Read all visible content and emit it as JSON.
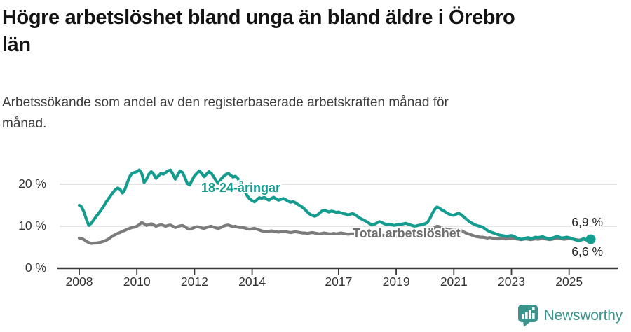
{
  "header": {
    "title": "Högre arbetslöshet bland unga än bland äldre i Örebro län",
    "title_lines": [
      "Högre arbetslöshet bland unga än bland äldre i Örebro",
      "län"
    ],
    "subtitle": "Arbetssökande som andel av den registerbaserade arbetskraften månad för månad.",
    "subtitle_lines": [
      "Arbetssökande som andel av den registerbaserade arbetskraften månad för",
      "månad."
    ]
  },
  "colors": {
    "youth_line": "#149c8f",
    "total_line": "#7b7b7b",
    "grid": "#dcdcdc",
    "axis": "#3a3a3a",
    "axis_text": "#333333",
    "end_label_text": "#222222",
    "logo": "#3a948c"
  },
  "logo": {
    "text": "Newsworthy",
    "icon": "newsworthy-bar-chart-bubble-icon"
  },
  "chart_data": {
    "type": "line",
    "title": "Högre arbetslöshet bland unga än bland äldre i Örebro län",
    "subtitle": "Arbetssökande som andel av den registerbaserade arbetskraften månad för månad.",
    "xlabel": "",
    "ylabel": "",
    "ylim": [
      0,
      25
    ],
    "grid": "horizontal",
    "legend": "inline-labels",
    "frequency": "monthly",
    "x_start": "2008-01",
    "x_end": "2025-10",
    "y_ticks": [
      {
        "value": 0,
        "label": "0 %"
      },
      {
        "value": 10,
        "label": "10 %"
      },
      {
        "value": 20,
        "label": "20 %"
      }
    ],
    "x_ticks": [
      {
        "year": 2008,
        "label": "2008"
      },
      {
        "year": 2010,
        "label": "2010"
      },
      {
        "year": 2012,
        "label": "2012"
      },
      {
        "year": 2014,
        "label": "2014"
      },
      {
        "year": 2017,
        "label": "2017"
      },
      {
        "year": 2019,
        "label": "2019"
      },
      {
        "year": 2021,
        "label": "2021"
      },
      {
        "year": 2023,
        "label": "2023"
      },
      {
        "year": 2025,
        "label": "2025"
      }
    ],
    "series": [
      {
        "name": "18-24-åringar",
        "end_label": "6,9 %",
        "end_value": 6.9,
        "values": [
          15.0,
          14.6,
          13.4,
          11.6,
          10.2,
          10.7,
          11.5,
          12.3,
          13.0,
          13.8,
          14.6,
          15.6,
          16.4,
          17.2,
          18.0,
          18.7,
          19.1,
          18.8,
          17.9,
          18.8,
          20.3,
          21.8,
          22.6,
          22.8,
          23.0,
          23.4,
          22.6,
          20.4,
          21.2,
          22.4,
          23.0,
          22.4,
          21.4,
          22.0,
          22.6,
          22.4,
          22.8,
          23.2,
          23.4,
          22.4,
          21.2,
          22.2,
          23.2,
          22.8,
          21.6,
          20.2,
          19.8,
          21.0,
          22.0,
          22.6,
          23.2,
          22.6,
          21.8,
          22.4,
          23.0,
          22.6,
          21.8,
          20.8,
          20.2,
          21.2,
          21.8,
          22.3,
          22.6,
          22.2,
          21.7,
          21.9,
          21.4,
          20.5,
          19.5,
          18.3,
          17.2,
          16.5,
          16.1,
          15.8,
          16.3,
          16.8,
          16.6,
          16.9,
          16.5,
          16.2,
          16.6,
          16.9,
          16.5,
          16.2,
          16.4,
          16.6,
          16.3,
          16.0,
          15.7,
          15.9,
          15.6,
          15.2,
          14.9,
          14.5,
          14.0,
          13.4,
          12.9,
          12.6,
          12.4,
          12.6,
          13.1,
          13.6,
          13.8,
          13.6,
          13.4,
          13.6,
          13.5,
          13.3,
          13.4,
          13.2,
          13.0,
          12.9,
          12.7,
          12.9,
          13.0,
          12.7,
          12.3,
          11.9,
          11.6,
          11.3,
          11.0,
          10.6,
          10.3,
          10.5,
          10.8,
          11.1,
          10.9,
          10.6,
          10.4,
          10.5,
          10.4,
          10.2,
          10.3,
          10.5,
          10.4,
          10.6,
          10.7,
          10.5,
          10.3,
          10.1,
          10.0,
          10.2,
          10.3,
          10.4,
          10.6,
          10.9,
          11.8,
          13.0,
          14.0,
          14.6,
          14.3,
          13.9,
          13.6,
          13.2,
          12.9,
          12.7,
          12.6,
          12.9,
          13.1,
          12.8,
          12.3,
          11.8,
          11.3,
          10.9,
          10.6,
          10.3,
          10.1,
          10.0,
          9.8,
          9.4,
          9.0,
          8.7,
          8.5,
          8.3,
          8.1,
          7.9,
          7.8,
          7.7,
          7.6,
          7.7,
          7.8,
          7.6,
          7.3,
          7.1,
          6.9,
          7.0,
          7.2,
          7.3,
          7.1,
          7.2,
          7.4,
          7.3,
          7.4,
          7.5,
          7.3,
          7.1,
          7.0,
          7.2,
          7.4,
          7.6,
          7.4,
          7.2,
          7.3,
          7.4,
          7.3,
          7.1,
          6.9,
          6.7,
          6.5,
          6.7,
          7.1,
          6.8,
          6.5,
          6.9
        ]
      },
      {
        "name": "Total arbetslöshet",
        "end_label": "6,6 %",
        "end_value": 6.6,
        "values": [
          7.2,
          7.1,
          6.8,
          6.4,
          6.1,
          5.9,
          6.0,
          6.0,
          6.1,
          6.2,
          6.4,
          6.6,
          6.9,
          7.3,
          7.7,
          8.0,
          8.3,
          8.5,
          8.8,
          9.0,
          9.3,
          9.5,
          9.7,
          9.8,
          10.0,
          10.4,
          10.9,
          10.6,
          10.2,
          10.4,
          10.6,
          10.3,
          10.0,
          10.2,
          10.4,
          10.2,
          10.0,
          10.2,
          10.3,
          10.0,
          9.7,
          9.9,
          10.1,
          10.2,
          9.9,
          9.5,
          9.3,
          9.5,
          9.7,
          9.9,
          9.8,
          9.6,
          9.5,
          9.7,
          9.9,
          10.0,
          9.8,
          9.6,
          9.5,
          9.7,
          10.0,
          10.2,
          10.3,
          10.1,
          9.9,
          10.0,
          9.8,
          9.7,
          9.7,
          9.6,
          9.4,
          9.3,
          9.4,
          9.5,
          9.3,
          9.1,
          8.9,
          8.8,
          8.7,
          8.8,
          8.9,
          8.8,
          8.7,
          8.6,
          8.7,
          8.8,
          8.7,
          8.6,
          8.5,
          8.6,
          8.7,
          8.6,
          8.5,
          8.4,
          8.4,
          8.3,
          8.4,
          8.5,
          8.4,
          8.3,
          8.2,
          8.3,
          8.4,
          8.3,
          8.2,
          8.2,
          8.3,
          8.2,
          8.3,
          8.4,
          8.3,
          8.2,
          8.1,
          8.2,
          8.2,
          8.1,
          8.0,
          7.9,
          8.0,
          7.9,
          8.0,
          8.1,
          8.0,
          7.8,
          7.6,
          7.7,
          7.9,
          7.8,
          7.6,
          7.5,
          7.6,
          7.5,
          7.6,
          7.7,
          7.6,
          7.5,
          7.4,
          7.5,
          7.7,
          7.6,
          7.5,
          7.4,
          7.5,
          7.6,
          7.7,
          7.8,
          8.3,
          9.1,
          9.7,
          10.0,
          9.9,
          9.7,
          9.5,
          9.3,
          9.2,
          9.1,
          9.0,
          9.1,
          9.2,
          9.0,
          8.7,
          8.4,
          8.2,
          8.0,
          7.8,
          7.6,
          7.5,
          7.4,
          7.4,
          7.3,
          7.2,
          7.3,
          7.2,
          7.1,
          7.0,
          7.0,
          7.1,
          7.0,
          7.0,
          7.1,
          7.2,
          7.1,
          7.0,
          6.9,
          6.8,
          6.9,
          7.0,
          6.9,
          6.8,
          6.9,
          7.0,
          6.9,
          7.0,
          7.1,
          7.0,
          6.9,
          6.8,
          6.9,
          7.1,
          7.2,
          7.1,
          7.0,
          6.9,
          7.0,
          7.1,
          7.0,
          6.9,
          6.8,
          6.7,
          6.8,
          6.9,
          6.8,
          6.7,
          6.6
        ]
      }
    ]
  }
}
